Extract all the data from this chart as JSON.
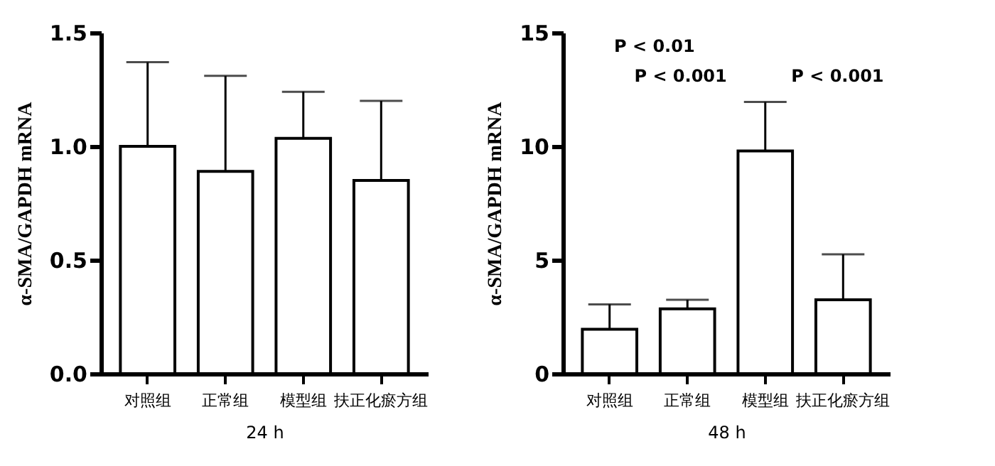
{
  "chart_data": [
    {
      "type": "bar",
      "xlabel": "24 h",
      "ylabel": "α-SMA/GAPDH mRNA",
      "categories": [
        "对照组",
        "正常组",
        "模型组",
        "扶正化瘀方组"
      ],
      "values": [
        1.0,
        0.89,
        1.035,
        0.85
      ],
      "errors": [
        [
          1.0,
          1.37
        ],
        [
          0.89,
          1.31
        ],
        [
          1.035,
          1.24
        ],
        [
          0.85,
          1.2
        ]
      ],
      "color": "#ffffff",
      "ylim": [
        0,
        1.5
      ],
      "yticks": [
        {
          "value": 0,
          "label": "0.0"
        },
        {
          "value": 0.5,
          "label": "0.5"
        },
        {
          "value": 1,
          "label": "1.0"
        },
        {
          "value": 1.5,
          "label": "1.5"
        }
      ],
      "grid": false
    },
    {
      "type": "bar",
      "xlabel": "48 h",
      "ylabel": "α-SMA/GAPDH mRNA",
      "categories": [
        "对照组",
        "正常组",
        "模型组",
        "扶正化瘀方组"
      ],
      "values": [
        1.95,
        2.85,
        9.8,
        3.25
      ],
      "errors": [
        [
          1.95,
          3.05
        ],
        [
          2.85,
          3.25
        ],
        [
          9.8,
          11.95
        ],
        [
          3.25,
          5.25
        ]
      ],
      "color": "#ffffff",
      "ylim": [
        0,
        15
      ],
      "yticks": [
        0,
        5,
        10,
        15
      ],
      "grid": false,
      "annotations": [
        "P < 0.01",
        "P < 0.001",
        "P < 0.001"
      ]
    }
  ]
}
